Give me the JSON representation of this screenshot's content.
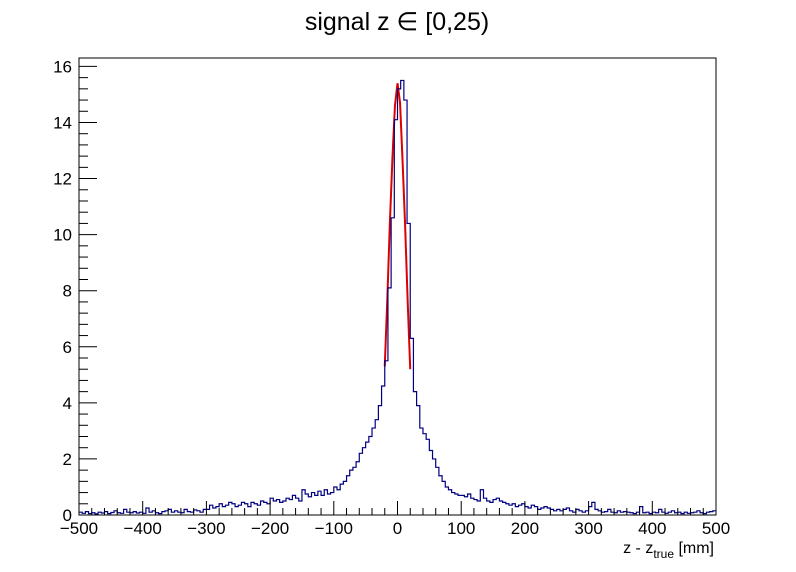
{
  "chart_data": {
    "type": "histogram",
    "title": "signal z ∈ [0,25)",
    "xlabel": "z - z",
    "xlabel_subscript": "true",
    "xlabel_unit": "[mm]",
    "ylabel": "",
    "xlim": [
      -500,
      500
    ],
    "ylim": [
      0,
      16.3
    ],
    "x_ticks": [
      -500,
      -400,
      -300,
      -200,
      -100,
      0,
      100,
      200,
      300,
      400,
      500
    ],
    "x_tick_labels": [
      "−500",
      "−400",
      "−300",
      "−200",
      "−100",
      "0",
      "100",
      "200",
      "300",
      "400",
      "500"
    ],
    "y_ticks": [
      0,
      2,
      4,
      6,
      8,
      10,
      12,
      14,
      16
    ],
    "y_tick_labels": [
      "0",
      "2",
      "4",
      "6",
      "8",
      "10",
      "12",
      "14",
      "16"
    ],
    "grid": false,
    "legend": "none",
    "series": [
      {
        "kind": "step-histogram",
        "color": "#000080",
        "bin_width": 5,
        "x_start": -500,
        "values": [
          0.1,
          0.06,
          0.12,
          0.05,
          0.08,
          0.04,
          0.1,
          0.07,
          0.12,
          0.05,
          0.09,
          0.15,
          0.08,
          0.06,
          0.2,
          0.1,
          0.08,
          0.12,
          0.07,
          0.1,
          0.06,
          0.25,
          0.1,
          0.15,
          0.08,
          0.05,
          0.12,
          0.15,
          0.2,
          0.1,
          0.15,
          0.1,
          0.08,
          0.2,
          0.12,
          0.1,
          0.18,
          0.15,
          0.1,
          0.2,
          0.2,
          0.35,
          0.25,
          0.3,
          0.4,
          0.3,
          0.35,
          0.45,
          0.4,
          0.3,
          0.35,
          0.45,
          0.4,
          0.3,
          0.45,
          0.4,
          0.35,
          0.5,
          0.45,
          0.4,
          0.6,
          0.5,
          0.55,
          0.45,
          0.5,
          0.6,
          0.55,
          0.7,
          0.6,
          0.5,
          0.9,
          0.75,
          0.65,
          0.8,
          0.7,
          0.85,
          0.7,
          0.9,
          0.75,
          0.8,
          1.0,
          0.9,
          1.1,
          1.2,
          1.4,
          1.6,
          1.7,
          1.9,
          2.2,
          2.4,
          2.6,
          2.8,
          3.1,
          3.4,
          3.9,
          4.6,
          5.5,
          8.1,
          10.6,
          14.1,
          15.2,
          15.5,
          14.8,
          10.4,
          6.3,
          4.4,
          3.9,
          3.1,
          2.9,
          2.7,
          2.3,
          2.0,
          1.7,
          1.4,
          1.2,
          1.0,
          0.9,
          0.8,
          0.75,
          0.7,
          0.7,
          0.65,
          0.75,
          0.6,
          0.55,
          0.5,
          0.9,
          0.6,
          0.5,
          0.45,
          0.55,
          0.6,
          0.5,
          0.45,
          0.4,
          0.35,
          0.4,
          0.3,
          0.35,
          0.4,
          0.3,
          0.25,
          0.35,
          0.3,
          0.2,
          0.25,
          0.3,
          0.25,
          0.2,
          0.15,
          0.2,
          0.15,
          0.2,
          0.25,
          0.15,
          0.1,
          0.2,
          0.15,
          0.1,
          0.15,
          0.3,
          0.45,
          0.2,
          0.15,
          0.1,
          0.12,
          0.2,
          0.1,
          0.08,
          0.15,
          0.1,
          0.12,
          0.1,
          0.08,
          0.05,
          0.1,
          0.3,
          0.08,
          0.1,
          0.05,
          0.1,
          0.08,
          0.2,
          0.1,
          0.06,
          0.1,
          0.15,
          0.08,
          0.1,
          0.05,
          0.1,
          0.06,
          0.08,
          0.1,
          0.15,
          0.08,
          0.05,
          0.1,
          0.12,
          0.15
        ]
      },
      {
        "kind": "fit-curve",
        "color": "#dd0000",
        "x_range": [
          -20,
          20
        ],
        "points": [
          [
            -20,
            5.3
          ],
          [
            -16,
            7.7
          ],
          [
            -12,
            10.4
          ],
          [
            -8,
            12.7
          ],
          [
            -4,
            14.6
          ],
          [
            0,
            15.4
          ],
          [
            4,
            14.7
          ],
          [
            8,
            12.6
          ],
          [
            12,
            10.3
          ],
          [
            16,
            7.6
          ],
          [
            20,
            5.2
          ]
        ]
      }
    ]
  }
}
